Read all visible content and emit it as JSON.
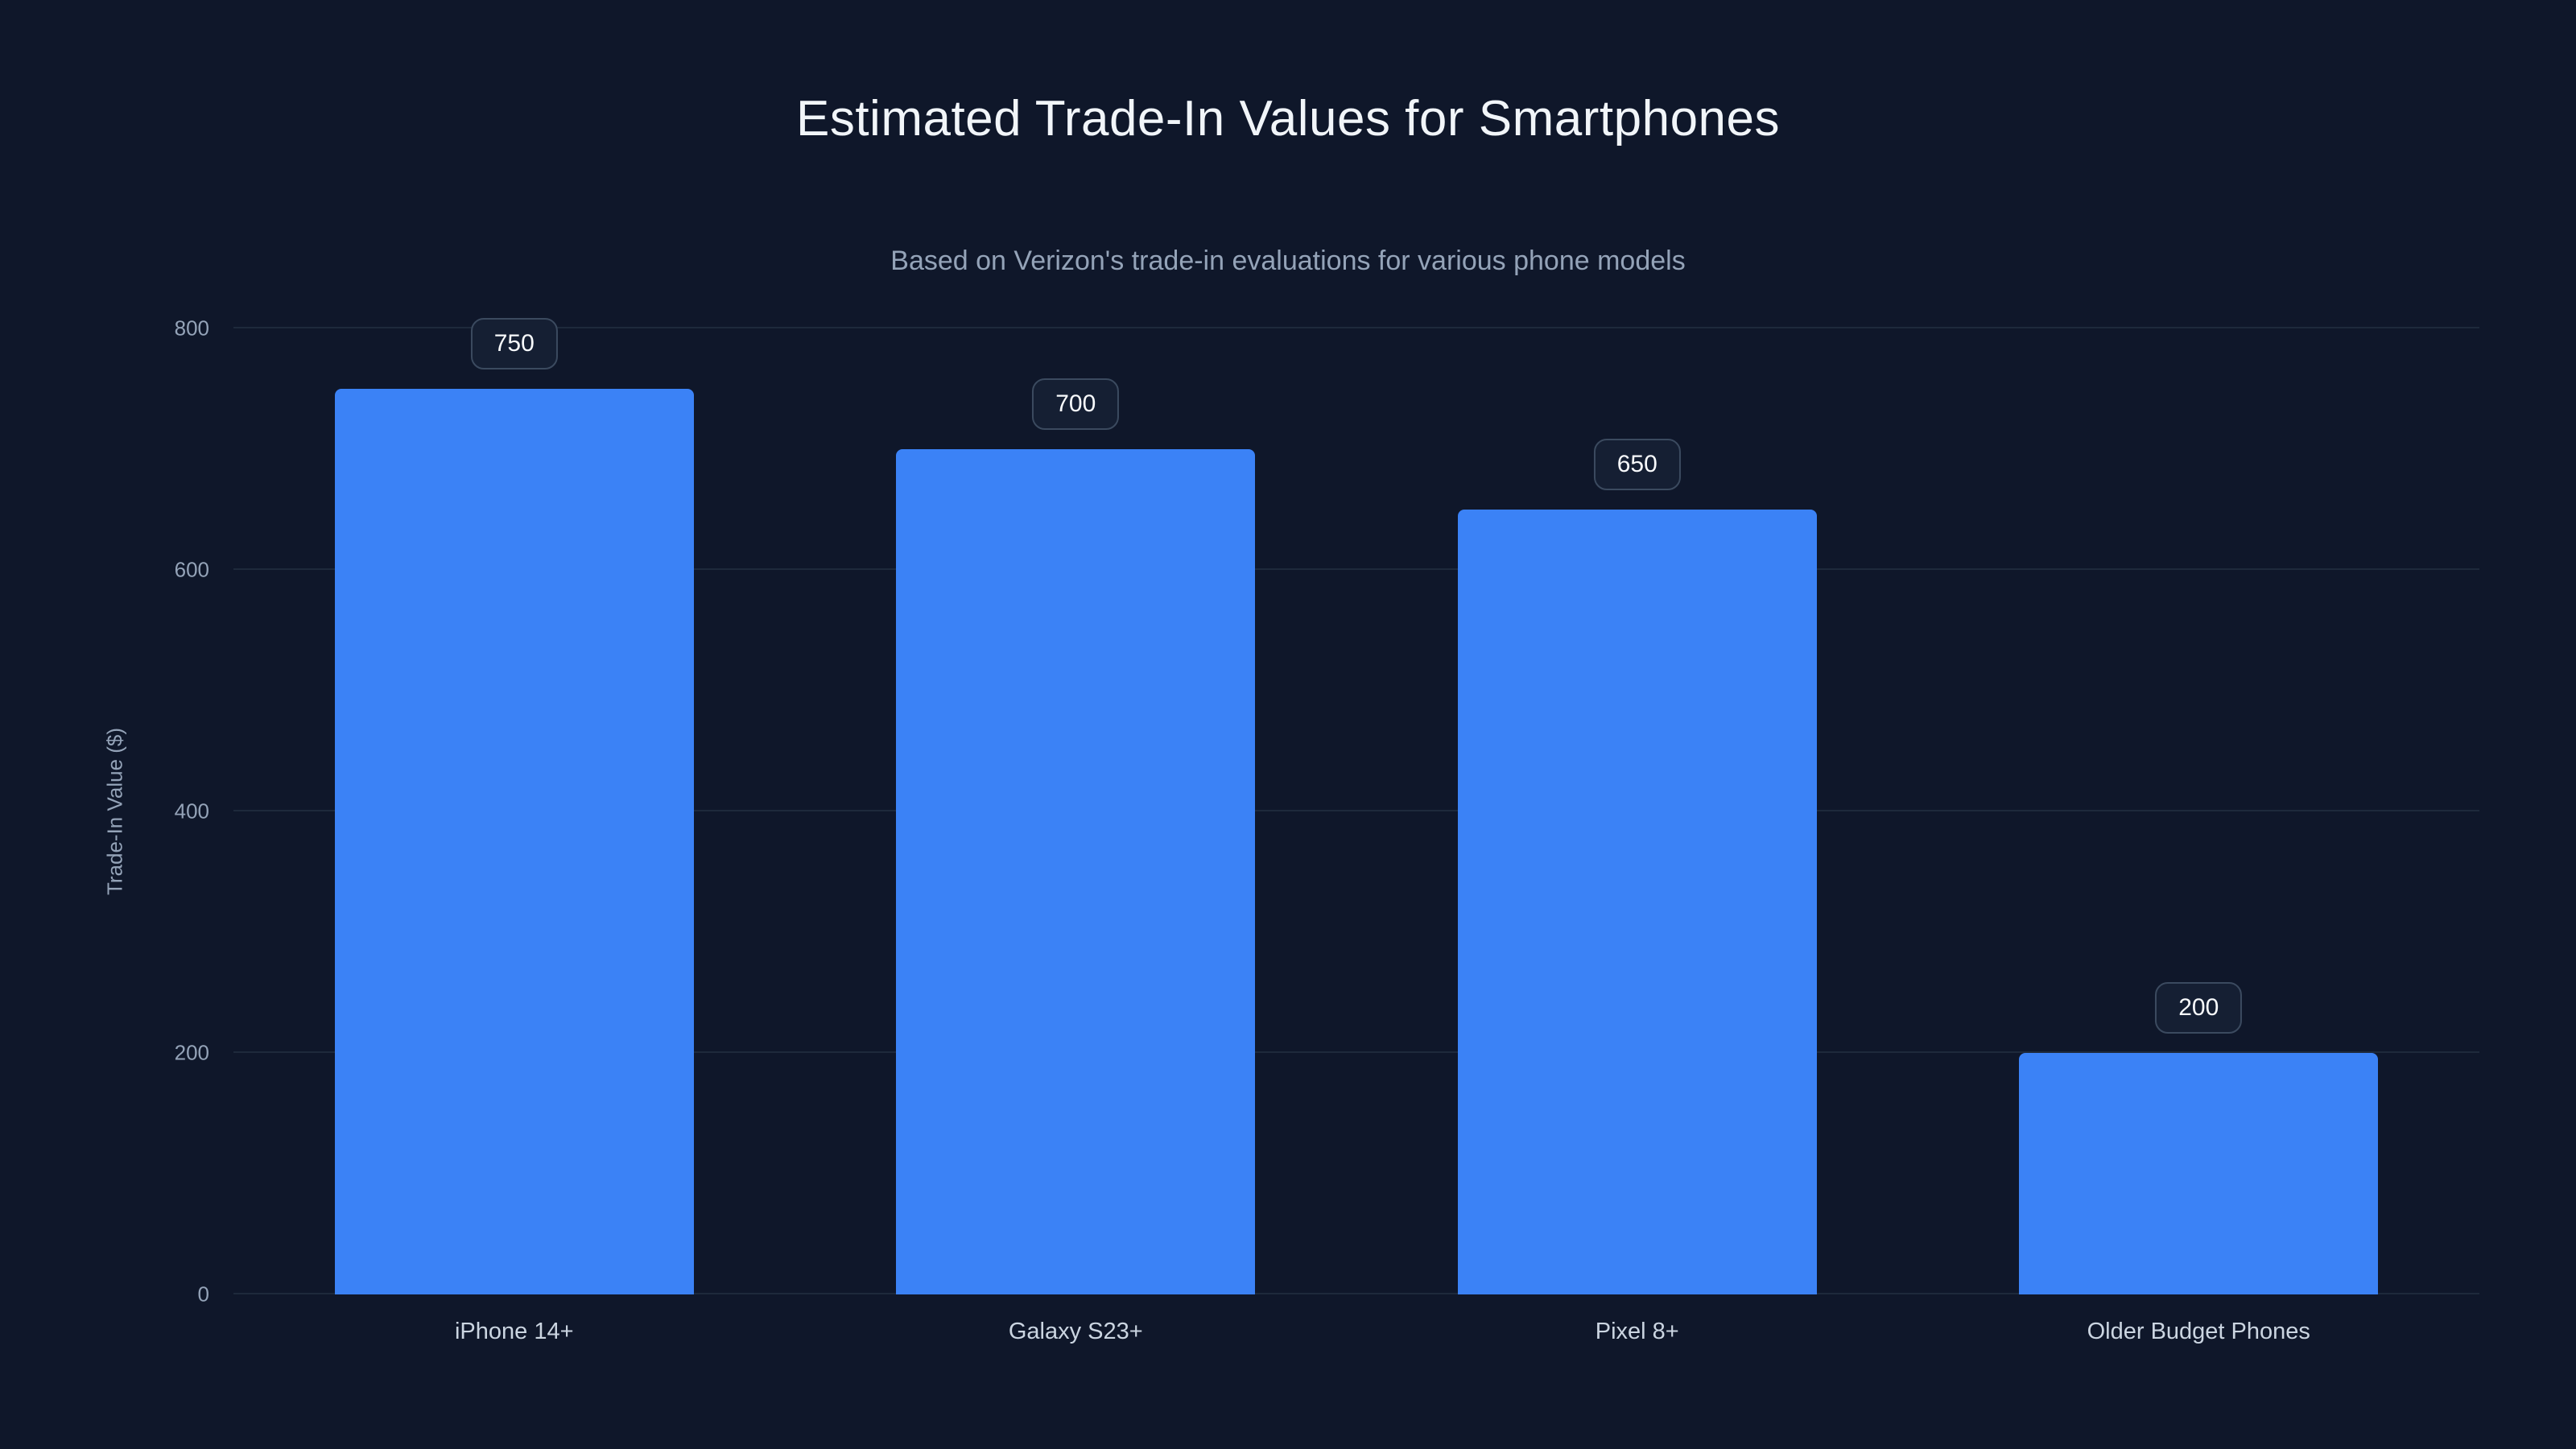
{
  "chart_data": {
    "type": "bar",
    "title": "Estimated Trade-In Values for Smartphones",
    "subtitle": "Based on Verizon's trade-in evaluations for various phone models",
    "categories": [
      "iPhone 14+",
      "Galaxy S23+",
      "Pixel 8+",
      "Older Budget Phones"
    ],
    "values": [
      750,
      700,
      650,
      200
    ],
    "value_labels": [
      "750",
      "700",
      "650",
      "200"
    ],
    "xlabel": "",
    "ylabel": "Trade-In Value ($)",
    "ylim": [
      0,
      800
    ],
    "yticks": [
      0,
      200,
      400,
      600,
      800
    ],
    "grid": "horizontal",
    "legend": "none",
    "colors": {
      "background": "#0f172a",
      "bar": "#3b82f6",
      "gridline": "#1e293b",
      "title": "#f1f5f9",
      "subtitle": "#94a3b8",
      "tick_label": "#94a3b8",
      "category_label": "#cbd5e1",
      "badge_background": "#151f33",
      "badge_border": "#3b4a5f",
      "badge_text": "#f8fafc"
    }
  }
}
